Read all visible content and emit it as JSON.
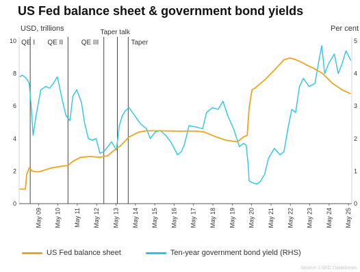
{
  "title": "US Fed balance sheet & government bond yields",
  "left_unit": "USD, trillions",
  "right_unit": "Per cent",
  "source": "Source: LSEG Datastream",
  "colors": {
    "balance": "#f0a31c",
    "yield": "#27c6e8",
    "marker": "#444444",
    "grid": "#e6e6e6"
  },
  "chart_data": {
    "type": "line",
    "title": "US Fed balance sheet & government bond yields",
    "left_axis": {
      "label": "USD, trillions",
      "ylim": [
        0,
        10
      ],
      "ticks": [
        0,
        2,
        4,
        6,
        8,
        10
      ]
    },
    "right_axis": {
      "label": "Per cent",
      "ylim": [
        0,
        5
      ],
      "ticks": [
        0,
        1,
        2,
        3,
        4,
        5
      ]
    },
    "x_tick_labels": [
      "May 09",
      "May 10",
      "May 11",
      "May 12",
      "May 13",
      "May 14",
      "May 15",
      "May 16",
      "May 17",
      "May 18",
      "May 19",
      "May 20",
      "May 21",
      "May 22",
      "May 23",
      "May 24",
      "May 25"
    ],
    "x_range": [
      "2008-05",
      "2025-06"
    ],
    "events": [
      {
        "label": "QE I",
        "date": "2008.9"
      },
      {
        "label": "QE II",
        "date": "2010.85"
      },
      {
        "label": "QE III",
        "date": "2012.7"
      },
      {
        "label": "Taper talk",
        "date": "2013.4"
      },
      {
        "label": "Taper",
        "date": "2013.96"
      }
    ],
    "series": [
      {
        "name": "US Fed balance sheet",
        "axis": "left",
        "x": [
          2008.35,
          2008.65,
          2008.72,
          2008.85,
          2009.0,
          2009.3,
          2009.6,
          2010.0,
          2010.5,
          2010.85,
          2011.1,
          2011.5,
          2012.0,
          2012.5,
          2012.9,
          2013.2,
          2013.6,
          2014.0,
          2014.5,
          2014.9,
          2015.5,
          2016.5,
          2017.5,
          2017.9,
          2018.5,
          2019.0,
          2019.6,
          2019.9,
          2020.1,
          2020.2,
          2020.35,
          2020.5,
          2021.0,
          2021.5,
          2022.0,
          2022.3,
          2022.5,
          2022.9,
          2023.2,
          2023.5,
          2024.0,
          2024.5,
          2025.0,
          2025.45
        ],
        "values": [
          0.9,
          0.9,
          1.8,
          2.2,
          2.0,
          1.95,
          2.05,
          2.2,
          2.3,
          2.35,
          2.6,
          2.85,
          2.9,
          2.85,
          2.95,
          3.25,
          3.6,
          4.1,
          4.4,
          4.48,
          4.48,
          4.46,
          4.46,
          4.4,
          4.1,
          3.9,
          3.8,
          4.1,
          4.2,
          5.9,
          7.0,
          7.1,
          7.6,
          8.2,
          8.85,
          8.95,
          8.9,
          8.7,
          8.5,
          8.35,
          8.0,
          7.4,
          7.0,
          6.75
        ]
      },
      {
        "name": "Ten-year government bond yield (RHS)",
        "axis": "right",
        "x": [
          2008.35,
          2008.5,
          2008.7,
          2008.85,
          2008.95,
          2009.05,
          2009.2,
          2009.45,
          2009.7,
          2009.9,
          2010.1,
          2010.3,
          2010.55,
          2010.75,
          2010.95,
          2011.1,
          2011.3,
          2011.55,
          2011.7,
          2011.9,
          2012.1,
          2012.3,
          2012.5,
          2012.7,
          2012.9,
          2013.1,
          2013.35,
          2013.5,
          2013.65,
          2013.8,
          2014.0,
          2014.3,
          2014.6,
          2014.9,
          2015.1,
          2015.35,
          2015.6,
          2015.9,
          2016.2,
          2016.5,
          2016.7,
          2016.85,
          2017.1,
          2017.5,
          2017.8,
          2018.0,
          2018.3,
          2018.6,
          2018.85,
          2019.1,
          2019.4,
          2019.7,
          2019.9,
          2020.05,
          2020.15,
          2020.2,
          2020.35,
          2020.6,
          2020.8,
          2021.0,
          2021.2,
          2021.5,
          2021.8,
          2022.0,
          2022.2,
          2022.4,
          2022.6,
          2022.8,
          2023.0,
          2023.3,
          2023.6,
          2023.8,
          2023.95,
          2024.1,
          2024.3,
          2024.6,
          2024.8,
          2025.0,
          2025.2,
          2025.45
        ],
        "values": [
          3.9,
          3.95,
          3.85,
          3.7,
          3.0,
          2.1,
          2.7,
          3.5,
          3.6,
          3.55,
          3.7,
          3.9,
          3.2,
          2.7,
          2.55,
          3.3,
          3.5,
          3.1,
          2.5,
          2.0,
          1.95,
          2.0,
          1.55,
          1.6,
          1.75,
          1.9,
          1.65,
          2.4,
          2.7,
          2.85,
          2.95,
          2.7,
          2.45,
          2.3,
          2.0,
          2.2,
          2.25,
          2.1,
          1.85,
          1.5,
          1.6,
          1.8,
          2.4,
          2.35,
          2.3,
          2.8,
          2.95,
          2.9,
          3.15,
          2.7,
          2.3,
          1.75,
          1.85,
          1.8,
          1.2,
          0.7,
          0.65,
          0.6,
          0.7,
          0.9,
          1.4,
          1.7,
          1.5,
          1.6,
          2.3,
          2.9,
          2.8,
          3.6,
          3.85,
          3.6,
          3.7,
          4.4,
          4.85,
          4.0,
          4.3,
          4.6,
          4.0,
          4.3,
          4.7,
          4.4
        ]
      }
    ]
  }
}
